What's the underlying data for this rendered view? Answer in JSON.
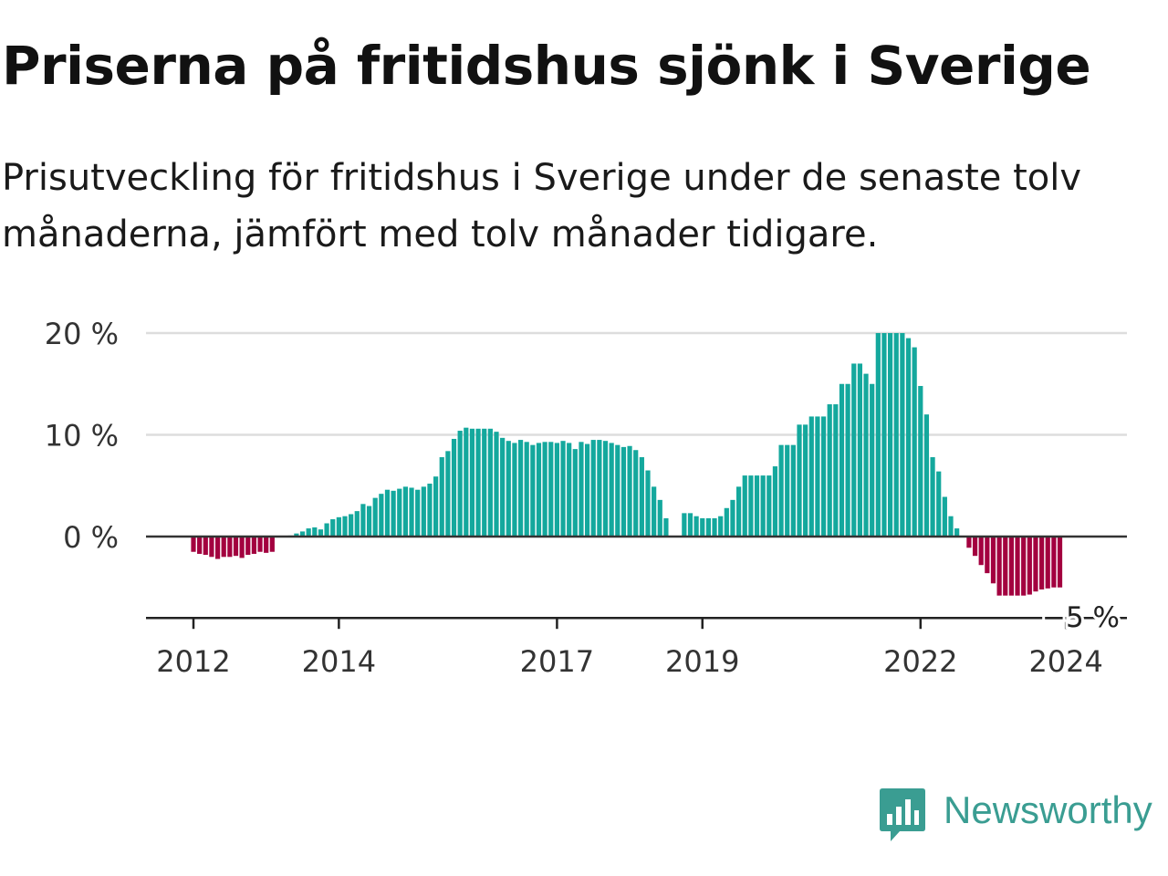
{
  "title": "Priserna på fritidshus sjönk i Sverige",
  "subtitle": "Prisutveckling för fritidshus i Sverige under de senaste tolv månaderna, jämfört med tolv månader tidigare.",
  "brand": {
    "name": "Newsworthy",
    "icon": "newsworthy-logo-icon"
  },
  "colors": {
    "positive": "#14a89d",
    "negative": "#a3003f",
    "grid": "#dddddd",
    "axis": "#333333",
    "brand": "#3a9d92"
  },
  "chart_data": {
    "type": "bar",
    "ylim": [
      -8,
      20
    ],
    "yticks": [
      0,
      10,
      20
    ],
    "ytick_labels": [
      "0 %",
      "10 %",
      "20 %"
    ],
    "xtick_labels": [
      {
        "label": "2012",
        "month": 0
      },
      {
        "label": "2014",
        "month": 24
      },
      {
        "label": "2017",
        "month": 60
      },
      {
        "label": "2019",
        "month": 84
      },
      {
        "label": "2022",
        "month": 120
      },
      {
        "label": "2024",
        "month": 144
      }
    ],
    "annotation": "−5 %",
    "start": "2012-01",
    "values": [
      -1.5,
      -1.7,
      -1.8,
      -2.0,
      -2.2,
      -2.0,
      -2.0,
      -1.9,
      -2.1,
      -1.8,
      -1.7,
      -1.5,
      -1.6,
      -1.5,
      null,
      null,
      0.1,
      0.3,
      0.5,
      0.8,
      0.9,
      0.7,
      1.3,
      1.7,
      1.9,
      2.0,
      2.2,
      2.5,
      3.2,
      3.0,
      3.8,
      4.2,
      4.6,
      4.5,
      4.7,
      4.9,
      4.8,
      4.6,
      4.9,
      5.2,
      5.9,
      7.8,
      8.4,
      9.6,
      10.4,
      10.7,
      10.6,
      10.6,
      10.6,
      10.6,
      10.3,
      9.7,
      9.4,
      9.2,
      9.5,
      9.3,
      9.0,
      9.2,
      9.3,
      9.3,
      9.2,
      9.4,
      9.2,
      8.6,
      9.3,
      9.1,
      9.5,
      9.5,
      9.4,
      9.2,
      9.0,
      8.8,
      8.9,
      8.5,
      7.8,
      6.5,
      4.9,
      3.6,
      1.8,
      null,
      null,
      2.3,
      2.3,
      2.0,
      1.8,
      1.8,
      1.8,
      2.0,
      2.8,
      3.6,
      4.9,
      6.0,
      6.0,
      6.0,
      6.0,
      6.0,
      6.9,
      9.0,
      9.0,
      9.0,
      11.0,
      11.0,
      11.8,
      11.8,
      11.8,
      13.0,
      13.0,
      15.0,
      15.0,
      17.0,
      17.0,
      16.0,
      15.0,
      20.0,
      20.0,
      20.0,
      20.0,
      20.0,
      19.5,
      18.6,
      14.8,
      12.0,
      7.8,
      6.4,
      3.9,
      2.0,
      0.8,
      null,
      -1.1,
      -1.9,
      -2.8,
      -3.6,
      -4.6,
      -5.8,
      -5.8,
      -5.8,
      -5.8,
      -5.8,
      -5.7,
      -5.4,
      -5.2,
      -5.1,
      -5.0,
      -5.0
    ]
  }
}
